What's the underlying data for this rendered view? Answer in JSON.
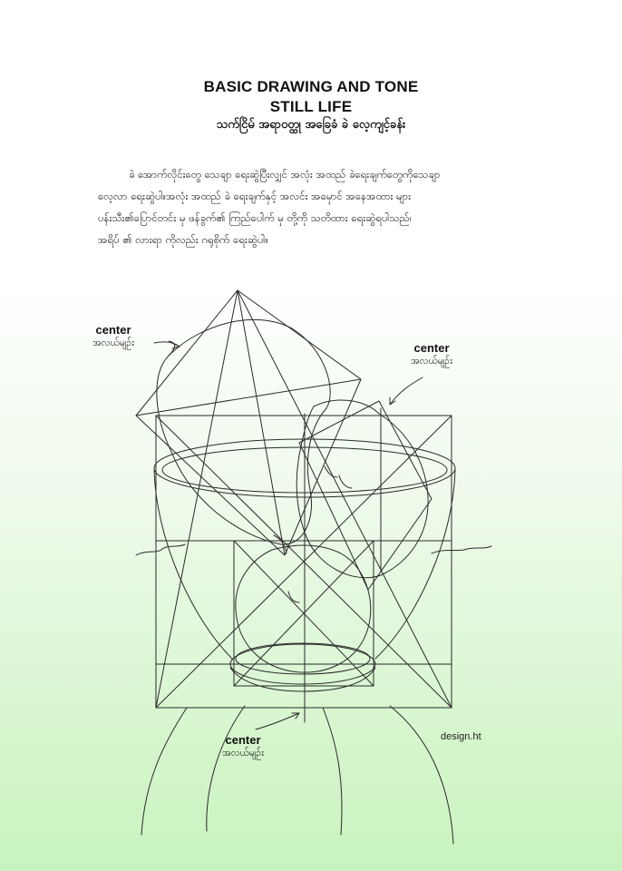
{
  "header": {
    "title_line1": "BASIC DRAWING AND TONE",
    "title_line2": "STILL LIFE",
    "subtitle": "သက်ငြိမ် အရာဝတ္ထု အခြေခံ ခဲ လေ့ကျင့်ခန်း"
  },
  "body": {
    "lines": [
      "ခဲ အောက်လိုင်းတွေ သေချာ ရေးဆွဲပြီးလျှင် အလုံး အထည် ခဲရေးချက်တွေကိုသေချာ",
      "လေ့လာ ရေးဆွဲပါ။အလုံး အထည် ခဲ ရေးချက်နှင့် အလင်း အမှောင် အနေအထား များ",
      "ပန်းသီး၏ပြောင်တင်း မှ ဖန်ခွက်၏ ကြည်ပေါက် မှ တို့ကို သတိထား ရေးဆွဲရပါသည်၊",
      "အရိပ် ၏ လားရာ ကိုလည်း ဂရုစိုက် ရေးဆွဲပါ။"
    ]
  },
  "labels": [
    {
      "en": "center",
      "my": "အလယ်မျဉ်း"
    },
    {
      "en": "center",
      "my": "အလယ်မျဉ်း"
    },
    {
      "en": "center",
      "my": "အလယ်မျဉ်း"
    }
  ],
  "credit": "design.ht",
  "colors": {
    "line": "#2a2a2a",
    "bg_top": "#ffffff",
    "bg_bottom": "#c8f3bf"
  }
}
